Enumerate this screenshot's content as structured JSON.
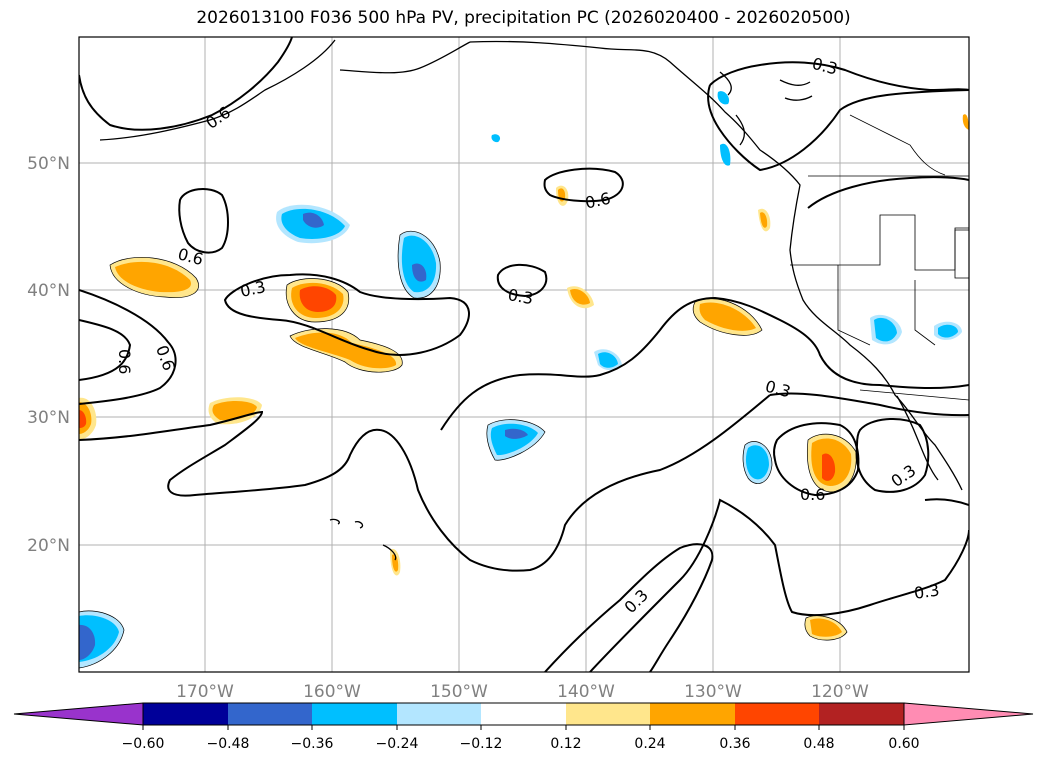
{
  "title": "2026013100 F036 500 hPa PV, precipitation PC (2026020400 - 2026020500)",
  "lat_labels": [
    "50°N",
    "40°N",
    "30°N",
    "20°N"
  ],
  "lon_labels": [
    "170°W",
    "160°W",
    "150°W",
    "140°W",
    "130°W",
    "120°W"
  ],
  "contour_labels": [
    "0.6",
    "0.3",
    "0.6",
    "0.3",
    "0.6",
    "0.6",
    "0.6",
    "0.3",
    "0.3",
    "0.6",
    "0.3",
    "0.3",
    "0.3"
  ],
  "colorbar": {
    "ticks": [
      "−0.60",
      "−0.48",
      "−0.36",
      "−0.24",
      "−0.12",
      "0.12",
      "0.24",
      "0.36",
      "0.48",
      "0.60"
    ],
    "colors": [
      "#9933cc",
      "#000099",
      "#3366cc",
      "#00bfff",
      "#b3e6ff",
      "#ffffff",
      "#ffe68c",
      "#ffa500",
      "#ff4500",
      "#b22222",
      "#ff8cb3"
    ]
  }
}
